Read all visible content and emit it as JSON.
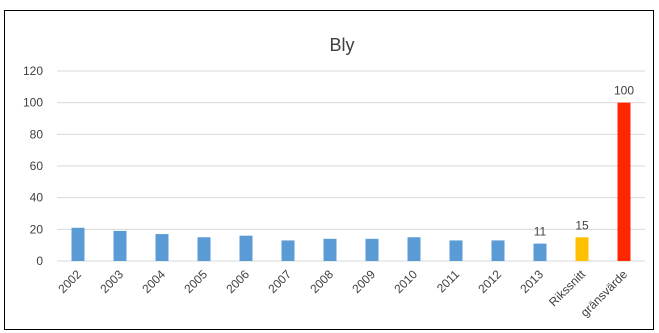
{
  "chart_data": {
    "type": "bar",
    "title": "Bly",
    "xlabel": "",
    "ylabel": "",
    "ylim": [
      0,
      120
    ],
    "yticks": [
      0,
      20,
      40,
      60,
      80,
      100,
      120
    ],
    "grid": true,
    "legend": "none",
    "categories": [
      "2002",
      "2003",
      "2004",
      "2005",
      "2006",
      "2007",
      "2008",
      "2009",
      "2010",
      "2011",
      "2012",
      "2013",
      "Rikssnitt",
      "gränsvärde"
    ],
    "values": [
      21,
      19,
      17,
      15,
      16,
      13,
      14,
      14,
      15,
      13,
      13,
      11,
      15,
      100
    ],
    "bar_colors": [
      "#5b9bd5",
      "#5b9bd5",
      "#5b9bd5",
      "#5b9bd5",
      "#5b9bd5",
      "#5b9bd5",
      "#5b9bd5",
      "#5b9bd5",
      "#5b9bd5",
      "#5b9bd5",
      "#5b9bd5",
      "#5b9bd5",
      "#ffc000",
      "#ff2600"
    ],
    "data_labels": [
      {
        "category": "2013",
        "text": "11"
      },
      {
        "category": "Rikssnitt",
        "text": "15"
      },
      {
        "category": "gränsvärde",
        "text": "100"
      }
    ],
    "colors": {
      "grid": "#d9d9d9",
      "text": "#404040"
    }
  }
}
